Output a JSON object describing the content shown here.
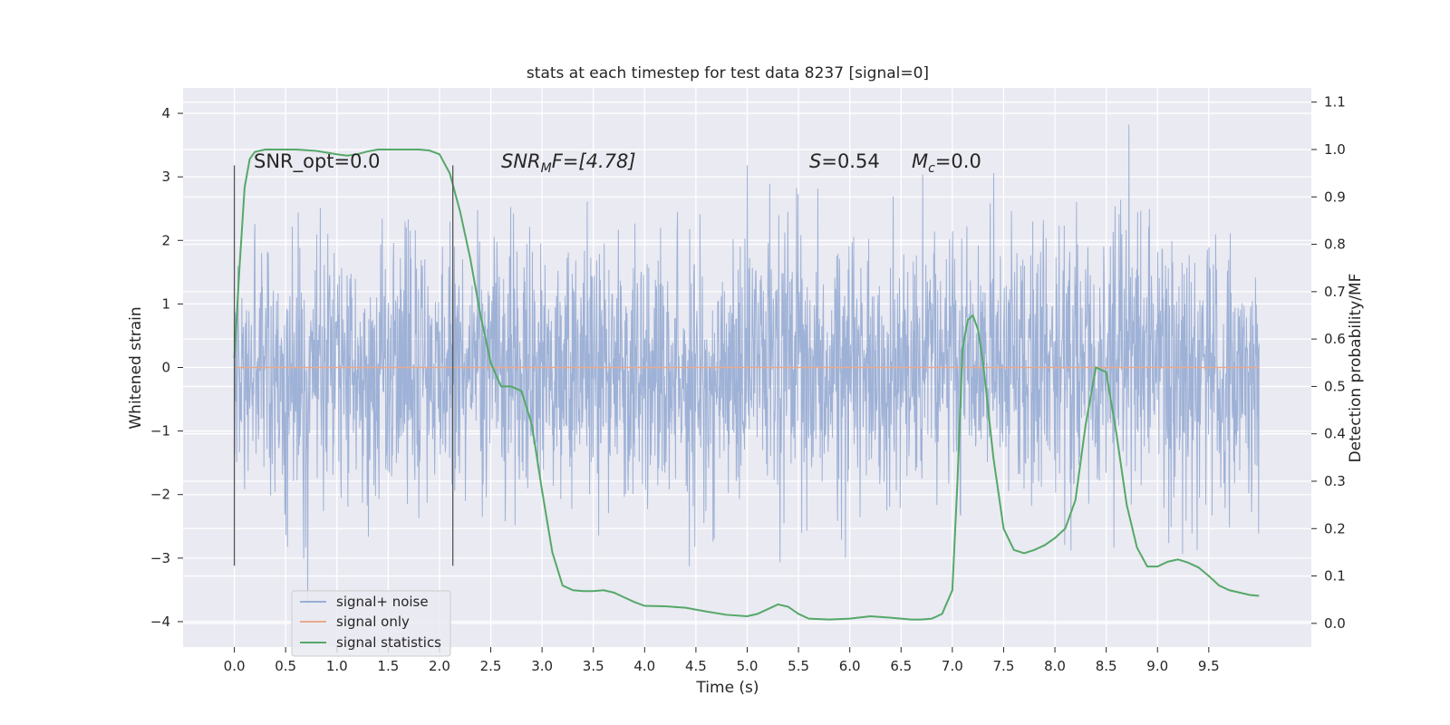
{
  "chart_data": {
    "type": "line",
    "title": "stats at each timestep for test data 8237 [signal=0]",
    "xlabel": "Time (s)",
    "ylabel": "Whitened strain",
    "y2label": "Detection probability/MF",
    "xlim": [
      -0.5,
      10.5
    ],
    "ylim": [
      -4.4,
      4.4
    ],
    "y2lim": [
      -0.05,
      1.13
    ],
    "x_ticks": [
      "0.0",
      "0.5",
      "1.0",
      "1.5",
      "2.0",
      "2.5",
      "3.0",
      "3.5",
      "4.0",
      "4.5",
      "5.0",
      "5.5",
      "6.0",
      "6.5",
      "7.0",
      "7.5",
      "8.0",
      "8.5",
      "9.0",
      "9.5"
    ],
    "y_ticks": [
      "4",
      "3",
      "2",
      "1",
      "0",
      "−1",
      "−2",
      "−3",
      "−4"
    ],
    "y2_ticks": [
      "1.1",
      "1.0",
      "0.9",
      "0.8",
      "0.7",
      "0.6",
      "0.5",
      "0.4",
      "0.3",
      "0.2",
      "0.1",
      "0.0"
    ],
    "grid": true,
    "legend_position": "lower-left",
    "vertical_markers_x": [
      0.0,
      2.13
    ],
    "annotations": {
      "snr_opt": "SNR_opt=0.0",
      "snr_mf_sym": "SNR",
      "snr_mf_sub": "M",
      "snr_mf_tail": "F=[4.78]",
      "s_sym": "S",
      "s_tail": "=0.54",
      "mc_sym": "M",
      "mc_sub": "c",
      "mc_tail": "=0.0"
    },
    "series": [
      {
        "name": "signal+ noise",
        "color": "#9aaed4",
        "x_range": [
          0.0,
          9.99
        ],
        "envelope_typical": [
          -2.2,
          2.4
        ],
        "extremes": {
          "max": 4.05,
          "min": -3.95
        },
        "dense_band": [
          -1.3,
          1.3
        ]
      },
      {
        "name": "signal only",
        "color": "#e9a98e",
        "x": [
          0.0,
          9.99
        ],
        "y": [
          0.0,
          0.0
        ]
      },
      {
        "name": "signal statistics",
        "color": "#55a868",
        "axis": "right",
        "x": [
          0.0,
          0.05,
          0.1,
          0.15,
          0.2,
          0.3,
          0.4,
          0.6,
          0.8,
          1.0,
          1.1,
          1.2,
          1.3,
          1.4,
          1.5,
          1.6,
          1.8,
          1.9,
          2.0,
          2.1,
          2.2,
          2.3,
          2.4,
          2.5,
          2.6,
          2.7,
          2.8,
          2.9,
          3.0,
          3.1,
          3.2,
          3.3,
          3.4,
          3.5,
          3.6,
          3.7,
          3.8,
          3.9,
          4.0,
          4.2,
          4.4,
          4.6,
          4.8,
          5.0,
          5.1,
          5.2,
          5.3,
          5.4,
          5.5,
          5.6,
          5.8,
          6.0,
          6.2,
          6.4,
          6.6,
          6.7,
          6.8,
          6.9,
          7.0,
          7.05,
          7.1,
          7.15,
          7.2,
          7.25,
          7.3,
          7.4,
          7.5,
          7.6,
          7.7,
          7.8,
          7.9,
          8.0,
          8.1,
          8.2,
          8.3,
          8.4,
          8.5,
          8.6,
          8.7,
          8.8,
          8.9,
          9.0,
          9.1,
          9.2,
          9.3,
          9.4,
          9.5,
          9.6,
          9.7,
          9.8,
          9.9,
          9.99
        ],
        "y": [
          0.56,
          0.75,
          0.92,
          0.98,
          0.995,
          1.0,
          1.0,
          1.0,
          0.997,
          0.99,
          0.987,
          0.99,
          0.996,
          1.0,
          1.0,
          1.0,
          1.0,
          0.998,
          0.99,
          0.95,
          0.87,
          0.77,
          0.65,
          0.55,
          0.5,
          0.5,
          0.49,
          0.42,
          0.28,
          0.15,
          0.08,
          0.07,
          0.068,
          0.068,
          0.07,
          0.065,
          0.055,
          0.045,
          0.037,
          0.036,
          0.033,
          0.025,
          0.018,
          0.015,
          0.02,
          0.03,
          0.04,
          0.035,
          0.02,
          0.01,
          0.008,
          0.01,
          0.015,
          0.012,
          0.008,
          0.008,
          0.01,
          0.02,
          0.07,
          0.3,
          0.58,
          0.64,
          0.65,
          0.62,
          0.55,
          0.35,
          0.2,
          0.155,
          0.148,
          0.155,
          0.165,
          0.18,
          0.2,
          0.26,
          0.42,
          0.54,
          0.53,
          0.4,
          0.25,
          0.16,
          0.12,
          0.12,
          0.13,
          0.135,
          0.128,
          0.118,
          0.1,
          0.08,
          0.07,
          0.065,
          0.06,
          0.058
        ]
      }
    ]
  }
}
